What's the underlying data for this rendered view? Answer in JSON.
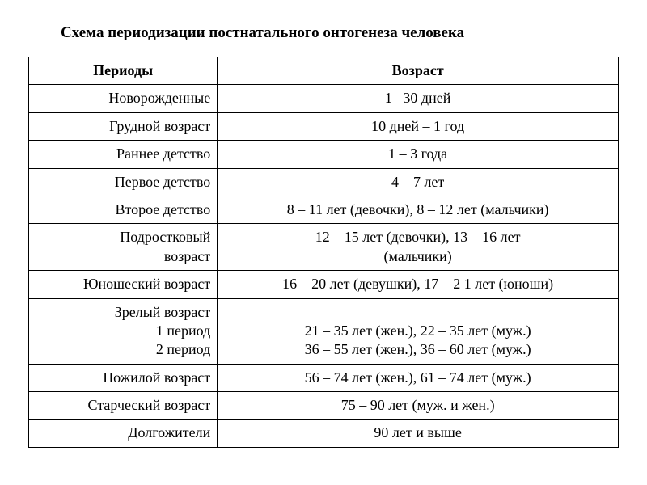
{
  "title": "Схема периодизации постнатального онтогенеза человека",
  "table": {
    "headers": {
      "col1": "Периоды",
      "col2": "Возраст"
    },
    "rows": [
      {
        "period": "Новорожденные",
        "age": "1– 30 дней"
      },
      {
        "period": "Грудной возраст",
        "age": "10 дней – 1 год"
      },
      {
        "period": "Раннее детство",
        "age": "1 – 3 года"
      },
      {
        "period": "Первое детство",
        "age": "4 – 7 лет"
      },
      {
        "period": "Второе детство",
        "age": "8 – 11 лет (девочки), 8 – 12 лет (мальчики)"
      },
      {
        "period": "Подростковый\nвозраст",
        "age": "12 – 15 лет (девочки), 13 – 16 лет\n(мальчики)"
      },
      {
        "period": "Юношеский возраст",
        "age": "16 – 20 лет (девушки), 17 – 2 1 лет (юноши)"
      },
      {
        "period": "Зрелый возраст\n1 период\n2 период",
        "age": "\n21 – 35 лет (жен.), 22 – 35 лет (муж.)\n36 – 55 лет (жен.), 36 – 60 лет (муж.)"
      },
      {
        "period": "Пожилой возраст",
        "age": "56 – 74 лет (жен.), 61 – 74 лет (муж.)"
      },
      {
        "period": "Старческий возраст",
        "age": "75 – 90 лет (муж. и жен.)"
      },
      {
        "period": "Долгожители",
        "age": "90 лет и выше"
      }
    ]
  },
  "styling": {
    "background_color": "#ffffff",
    "text_color": "#000000",
    "border_color": "#000000",
    "font_family": "Times New Roman",
    "title_fontsize": 19,
    "cell_fontsize": 18,
    "col_widths": [
      "32%",
      "68%"
    ]
  }
}
